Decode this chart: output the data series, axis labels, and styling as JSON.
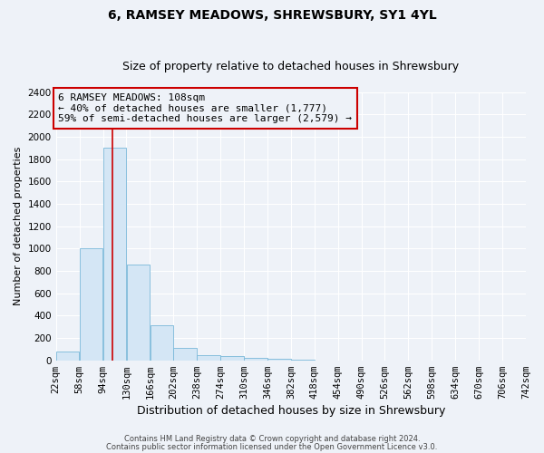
{
  "title": "6, RAMSEY MEADOWS, SHREWSBURY, SY1 4YL",
  "subtitle": "Size of property relative to detached houses in Shrewsbury",
  "xlabel": "Distribution of detached houses by size in Shrewsbury",
  "ylabel": "Number of detached properties",
  "footer_line1": "Contains HM Land Registry data © Crown copyright and database right 2024.",
  "footer_line2": "Contains public sector information licensed under the Open Government Licence v3.0.",
  "property_size": 108,
  "annotation_line1": "6 RAMSEY MEADOWS: 108sqm",
  "annotation_line2": "← 40% of detached houses are smaller (1,777)",
  "annotation_line3": "59% of semi-detached houses are larger (2,579) →",
  "bin_edges": [
    22,
    58,
    94,
    130,
    166,
    202,
    238,
    274,
    310,
    346,
    382,
    418,
    454,
    490,
    526,
    562,
    598,
    634,
    670,
    706,
    742
  ],
  "bar_heights": [
    80,
    1000,
    1900,
    860,
    310,
    115,
    50,
    40,
    25,
    12,
    5,
    0,
    0,
    0,
    0,
    0,
    0,
    0,
    0,
    0
  ],
  "bar_color": "#d4e6f5",
  "bar_edge_color": "#7ab8d9",
  "vline_x": 108,
  "vline_color": "#cc0000",
  "ylim": [
    0,
    2400
  ],
  "yticks": [
    0,
    200,
    400,
    600,
    800,
    1000,
    1200,
    1400,
    1600,
    1800,
    2000,
    2200,
    2400
  ],
  "annotation_box_color": "#cc0000",
  "background_color": "#eef2f8",
  "grid_color": "#ffffff",
  "title_fontsize": 10,
  "subtitle_fontsize": 9,
  "ylabel_fontsize": 8,
  "xlabel_fontsize": 9,
  "tick_fontsize": 7.5,
  "annotation_fontsize": 8,
  "footer_fontsize": 6
}
